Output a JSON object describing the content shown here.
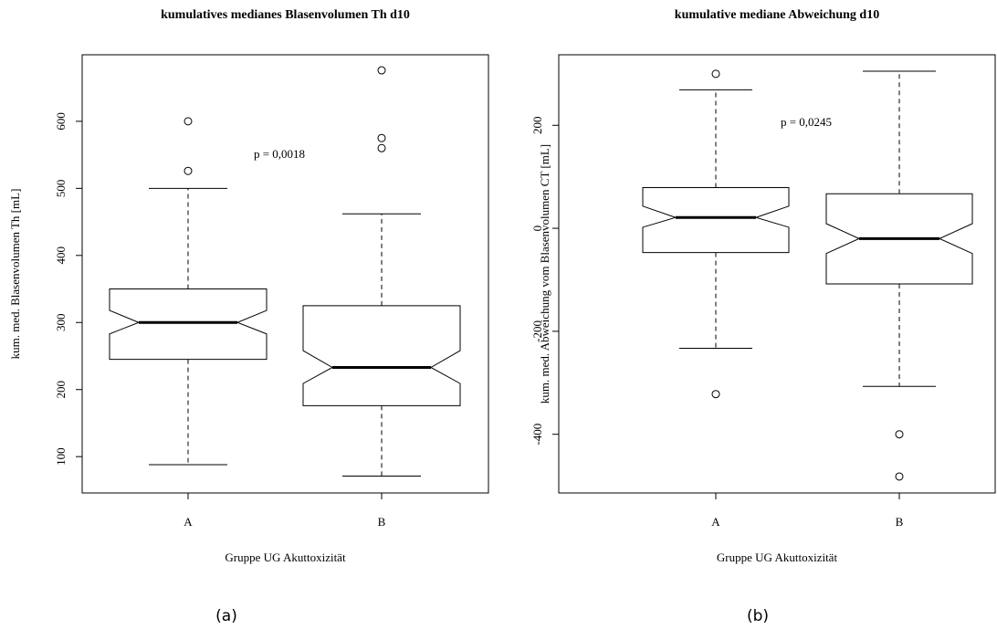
{
  "chart_data": [
    {
      "type": "boxplot",
      "title": "kumulatives medianes Blasenvolumen Th d10",
      "xlabel": "Gruppe UG Akuttoxizität",
      "ylabel": "kum. med. Blasenvolumen Th [mL]",
      "annotation": "p = 0,0018",
      "caption": "(a)",
      "categories": [
        "A",
        "B"
      ],
      "boxes": [
        {
          "whisker_low": 88,
          "q1": 245,
          "notch_low": 283,
          "median": 300,
          "notch_high": 318,
          "q3": 350,
          "whisker_high": 500,
          "outliers": [
            526,
            600
          ]
        },
        {
          "whisker_low": 71,
          "q1": 176,
          "notch_low": 209,
          "median": 233,
          "notch_high": 258,
          "q3": 325,
          "whisker_high": 462,
          "outliers": [
            560,
            575,
            676
          ]
        }
      ],
      "ylim": [
        45.8,
        699.2
      ],
      "yticks": [
        100,
        200,
        300,
        400,
        500,
        600
      ]
    },
    {
      "type": "boxplot",
      "title": "kumulative mediane Abweichung d10",
      "xlabel": "Gruppe UG Akuttoxizität",
      "ylabel": "kum. med. Abweichung vom Blasenvolumen CT [mL]",
      "annotation": "p = 0,0245",
      "caption": "(b)",
      "categories": [
        "A",
        "B"
      ],
      "boxes": [
        {
          "whisker_low": -233,
          "q1": -47,
          "notch_low": 2,
          "median": 21,
          "notch_high": 43,
          "q3": 79,
          "whisker_high": 269,
          "outliers": [
            -322,
            300
          ]
        },
        {
          "whisker_low": -307,
          "q1": -108,
          "notch_low": -49,
          "median": -20,
          "notch_high": 9,
          "q3": 67,
          "whisker_high": 305,
          "outliers": [
            -400,
            -482
          ]
        }
      ],
      "ylim": [
        -514,
        337
      ],
      "yticks": [
        -400,
        -200,
        0,
        200
      ]
    }
  ]
}
